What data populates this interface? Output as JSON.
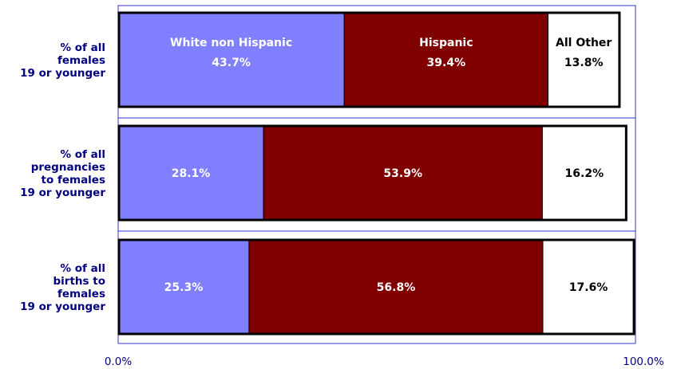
{
  "chart_data": {
    "type": "bar",
    "orientation": "horizontal",
    "stacked": true,
    "categories": [
      [
        "% of all",
        "females",
        "19 or younger"
      ],
      [
        "% of all",
        "pregnancies",
        "to females",
        "19 or younger"
      ],
      [
        "% of all",
        "births to",
        "females",
        "19 or younger"
      ]
    ],
    "series": [
      {
        "name": "White non Hispanic",
        "values": [
          43.7,
          28.1,
          25.3
        ],
        "labels": [
          "43.7%",
          "28.1%",
          "25.3%"
        ],
        "color": "#8080ff",
        "text_color": "#ffffff"
      },
      {
        "name": "Hispanic",
        "values": [
          39.4,
          53.9,
          56.8
        ],
        "labels": [
          "39.4%",
          "53.9%",
          "56.8%"
        ],
        "color": "#800000",
        "text_color": "#ffffff"
      },
      {
        "name": "All Other",
        "values": [
          13.8,
          16.2,
          17.6
        ],
        "labels": [
          "13.8%",
          "16.2%",
          "17.6%"
        ],
        "color": "#ffffff",
        "text_color": "#000000"
      }
    ],
    "legend_in_first_bar": true,
    "xlim": [
      0,
      100
    ],
    "x_ticks": [
      "0.0%",
      "100.0%"
    ],
    "grid": true,
    "title": "",
    "xlabel": "",
    "ylabel": ""
  }
}
